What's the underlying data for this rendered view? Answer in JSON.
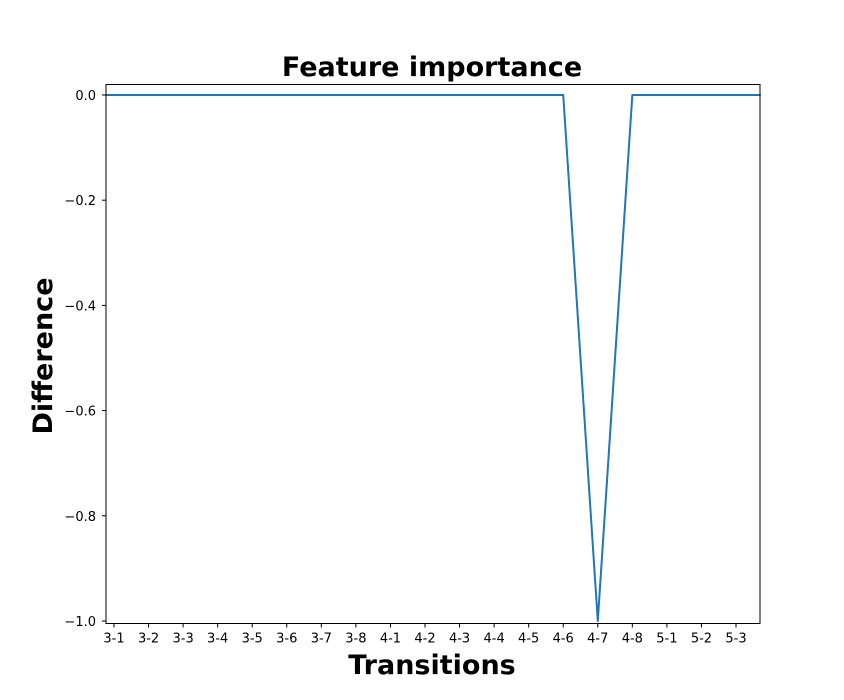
{
  "chart_data": {
    "type": "line",
    "title": "Feature importance",
    "xlabel": "Transitions",
    "ylabel": "Difference",
    "categories": [
      "3-1",
      "3-2",
      "3-3",
      "3-4",
      "3-5",
      "3-6",
      "3-7",
      "3-8",
      "4-1",
      "4-2",
      "4-3",
      "4-4",
      "4-5",
      "4-6",
      "4-7",
      "4-8",
      "5-1",
      "5-2",
      "5-3"
    ],
    "series": [
      {
        "values": [
          0,
          0,
          0,
          0,
          0,
          0,
          0,
          0,
          0,
          0,
          0,
          0,
          0,
          0,
          -1.0,
          0,
          0,
          0,
          0
        ],
        "color": "#1f77b4"
      }
    ],
    "ylim": [
      -1.0,
      0.0
    ],
    "yticks": [
      {
        "value": 0.0,
        "label": "0.0"
      },
      {
        "value": -0.2,
        "label": "−0.2"
      },
      {
        "value": -0.4,
        "label": "−0.4"
      },
      {
        "value": -0.6,
        "label": "−0.6"
      },
      {
        "value": -0.8,
        "label": "−0.8"
      },
      {
        "value": -1.0,
        "label": "−1.0"
      }
    ],
    "grid": false,
    "legend": "none"
  }
}
